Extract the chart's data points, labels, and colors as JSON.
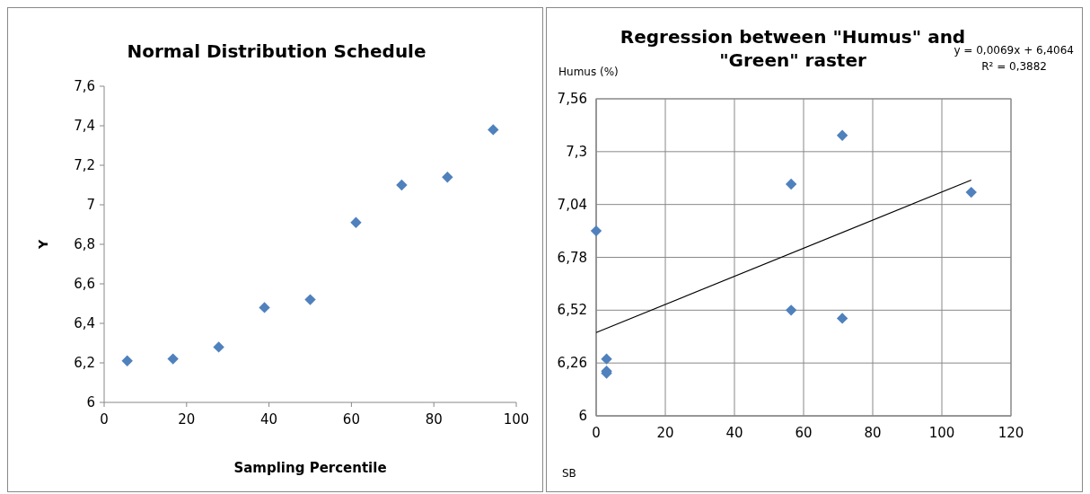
{
  "chart_data": [
    {
      "type": "scatter",
      "title": "Normal Distribution Schedule",
      "xlabel": "Sampling Percentile",
      "ylabel": "Y",
      "marker": "diamond",
      "grid": false,
      "x": [
        5.6,
        16.7,
        27.8,
        38.9,
        50,
        61.1,
        72.2,
        83.3,
        94.4
      ],
      "series": [
        {
          "color": "#4f81bd",
          "values": [
            6.21,
            6.22,
            6.28,
            6.48,
            6.52,
            6.91,
            7.1,
            7.14,
            7.38
          ]
        }
      ],
      "xlim": [
        0,
        100
      ],
      "xticks": [
        0,
        20,
        40,
        60,
        80,
        100
      ],
      "ylim": [
        6,
        7.6
      ],
      "yticks": [
        {
          "value": 6,
          "label": "6"
        },
        {
          "value": 6.2,
          "label": "6,2"
        },
        {
          "value": 6.4,
          "label": "6,4"
        },
        {
          "value": 6.6,
          "label": "6,6"
        },
        {
          "value": 6.8,
          "label": "6,8"
        },
        {
          "value": 7,
          "label": "7"
        },
        {
          "value": 7.2,
          "label": "7,2"
        },
        {
          "value": 7.4,
          "label": "7,4"
        },
        {
          "value": 7.6,
          "label": "7,6"
        }
      ]
    },
    {
      "type": "scatter",
      "title": "Regression between \"Humus\" and \"Green\" raster",
      "xlabel": "SB",
      "ylabel": "Humus (%)",
      "marker": "diamond",
      "grid": true,
      "series": [
        {
          "color": "#4f81bd",
          "x": [
            0,
            3,
            3,
            3,
            56.4,
            56.4,
            71.2,
            71.2,
            108.5
          ],
          "values": [
            6.91,
            6.28,
            6.22,
            6.21,
            7.14,
            6.52,
            7.38,
            6.48,
            7.1
          ]
        },
        {
          "type": "line",
          "marker": "none",
          "color": "#000000",
          "x": [
            0,
            108.5
          ],
          "values": [
            6.41,
            7.16
          ]
        }
      ],
      "annotations": [
        "y = 0,0069x + 6,4064",
        "R² = 0,3882"
      ],
      "xlim": [
        0,
        120
      ],
      "xticks": [
        0,
        20,
        40,
        60,
        80,
        100,
        120
      ],
      "ylim": [
        6,
        7.56
      ],
      "yticks": [
        {
          "value": 6,
          "label": "6"
        },
        {
          "value": 6.26,
          "label": "6,26"
        },
        {
          "value": 6.52,
          "label": "6,52"
        },
        {
          "value": 6.78,
          "label": "6,78"
        },
        {
          "value": 7.04,
          "label": "7,04"
        },
        {
          "value": 7.3,
          "label": "7,3"
        },
        {
          "value": 7.56,
          "label": "7,56"
        }
      ]
    }
  ]
}
